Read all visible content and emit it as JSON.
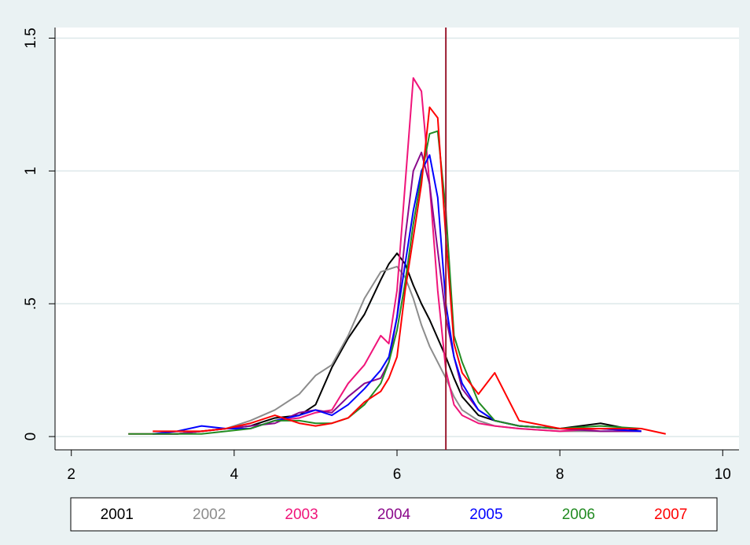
{
  "chart_data": {
    "type": "line",
    "x": [
      2.7,
      3.0,
      3.3,
      3.6,
      3.9,
      4.2,
      4.5,
      4.8,
      5.0,
      5.2,
      5.4,
      5.6,
      5.8,
      5.9,
      6.0,
      6.1,
      6.2,
      6.3,
      6.4,
      6.5,
      6.6,
      6.7,
      6.8,
      7.0,
      7.2,
      7.5,
      8.0,
      8.5,
      9.0,
      9.3
    ],
    "series": [
      {
        "name": "2001",
        "color": "#000000",
        "values": [
          null,
          0.01,
          0.01,
          0.02,
          0.03,
          0.04,
          0.07,
          0.08,
          0.12,
          0.26,
          0.37,
          0.46,
          0.59,
          0.65,
          0.69,
          0.65,
          0.57,
          0.5,
          0.44,
          0.37,
          0.3,
          0.22,
          0.15,
          0.08,
          0.06,
          0.04,
          0.03,
          0.05,
          0.02,
          null
        ]
      },
      {
        "name": "2002",
        "color": "#8c8c8c",
        "values": [
          null,
          0.01,
          0.01,
          0.02,
          0.03,
          0.06,
          0.1,
          0.16,
          0.23,
          0.27,
          0.38,
          0.52,
          0.62,
          0.63,
          0.64,
          0.6,
          0.52,
          0.42,
          0.34,
          0.28,
          0.22,
          0.15,
          0.1,
          0.06,
          0.04,
          0.03,
          0.02,
          0.02,
          0.02,
          null
        ]
      },
      {
        "name": "2003",
        "color": "#f0147a",
        "values": [
          0.01,
          0.01,
          0.01,
          0.02,
          0.03,
          0.03,
          0.06,
          0.07,
          0.09,
          0.1,
          0.2,
          0.27,
          0.38,
          0.35,
          0.55,
          0.95,
          1.35,
          1.3,
          0.95,
          0.55,
          0.25,
          0.12,
          0.08,
          0.05,
          0.04,
          0.03,
          0.02,
          0.03,
          0.02,
          null
        ]
      },
      {
        "name": "2004",
        "color": "#8b0a8b",
        "values": [
          null,
          0.01,
          0.01,
          0.02,
          0.03,
          0.04,
          0.05,
          0.09,
          0.1,
          0.09,
          0.15,
          0.2,
          0.22,
          0.28,
          0.45,
          0.75,
          1.0,
          1.07,
          0.95,
          0.7,
          0.45,
          0.3,
          0.18,
          0.1,
          0.06,
          0.04,
          0.03,
          0.02,
          0.02,
          null
        ]
      },
      {
        "name": "2005",
        "color": "#0000ff",
        "values": [
          null,
          0.01,
          0.02,
          0.04,
          0.03,
          0.03,
          0.06,
          0.08,
          0.1,
          0.08,
          0.12,
          0.18,
          0.25,
          0.3,
          0.45,
          0.65,
          0.85,
          1.0,
          1.06,
          0.9,
          0.5,
          0.3,
          0.2,
          0.1,
          0.06,
          0.04,
          0.03,
          0.03,
          0.02,
          null
        ]
      },
      {
        "name": "2006",
        "color": "#228b22",
        "values": [
          0.01,
          0.01,
          0.01,
          0.01,
          0.02,
          0.03,
          0.06,
          0.06,
          0.05,
          0.05,
          0.07,
          0.12,
          0.2,
          0.28,
          0.4,
          0.58,
          0.8,
          0.98,
          1.14,
          1.15,
          0.85,
          0.38,
          0.28,
          0.13,
          0.06,
          0.04,
          0.03,
          0.04,
          0.03,
          null
        ]
      },
      {
        "name": "2007",
        "color": "#ff0000",
        "values": [
          null,
          0.02,
          0.02,
          0.02,
          0.03,
          0.05,
          0.08,
          0.05,
          0.04,
          0.05,
          0.07,
          0.13,
          0.17,
          0.22,
          0.3,
          0.55,
          0.75,
          0.95,
          1.24,
          1.2,
          0.75,
          0.35,
          0.24,
          0.16,
          0.24,
          0.06,
          0.03,
          0.03,
          0.03,
          0.01
        ]
      }
    ],
    "xlim": [
      1.8,
      10.2
    ],
    "ylim": [
      -0.05,
      1.54
    ],
    "xticks": [
      2,
      4,
      6,
      8,
      10
    ],
    "yticks": [
      0,
      {
        "value": 0.5,
        "label": ".5"
      },
      1,
      1.5
    ],
    "grid": true,
    "vline": 6.6,
    "vline_color": "#9b1b30",
    "legend": "bottom"
  }
}
